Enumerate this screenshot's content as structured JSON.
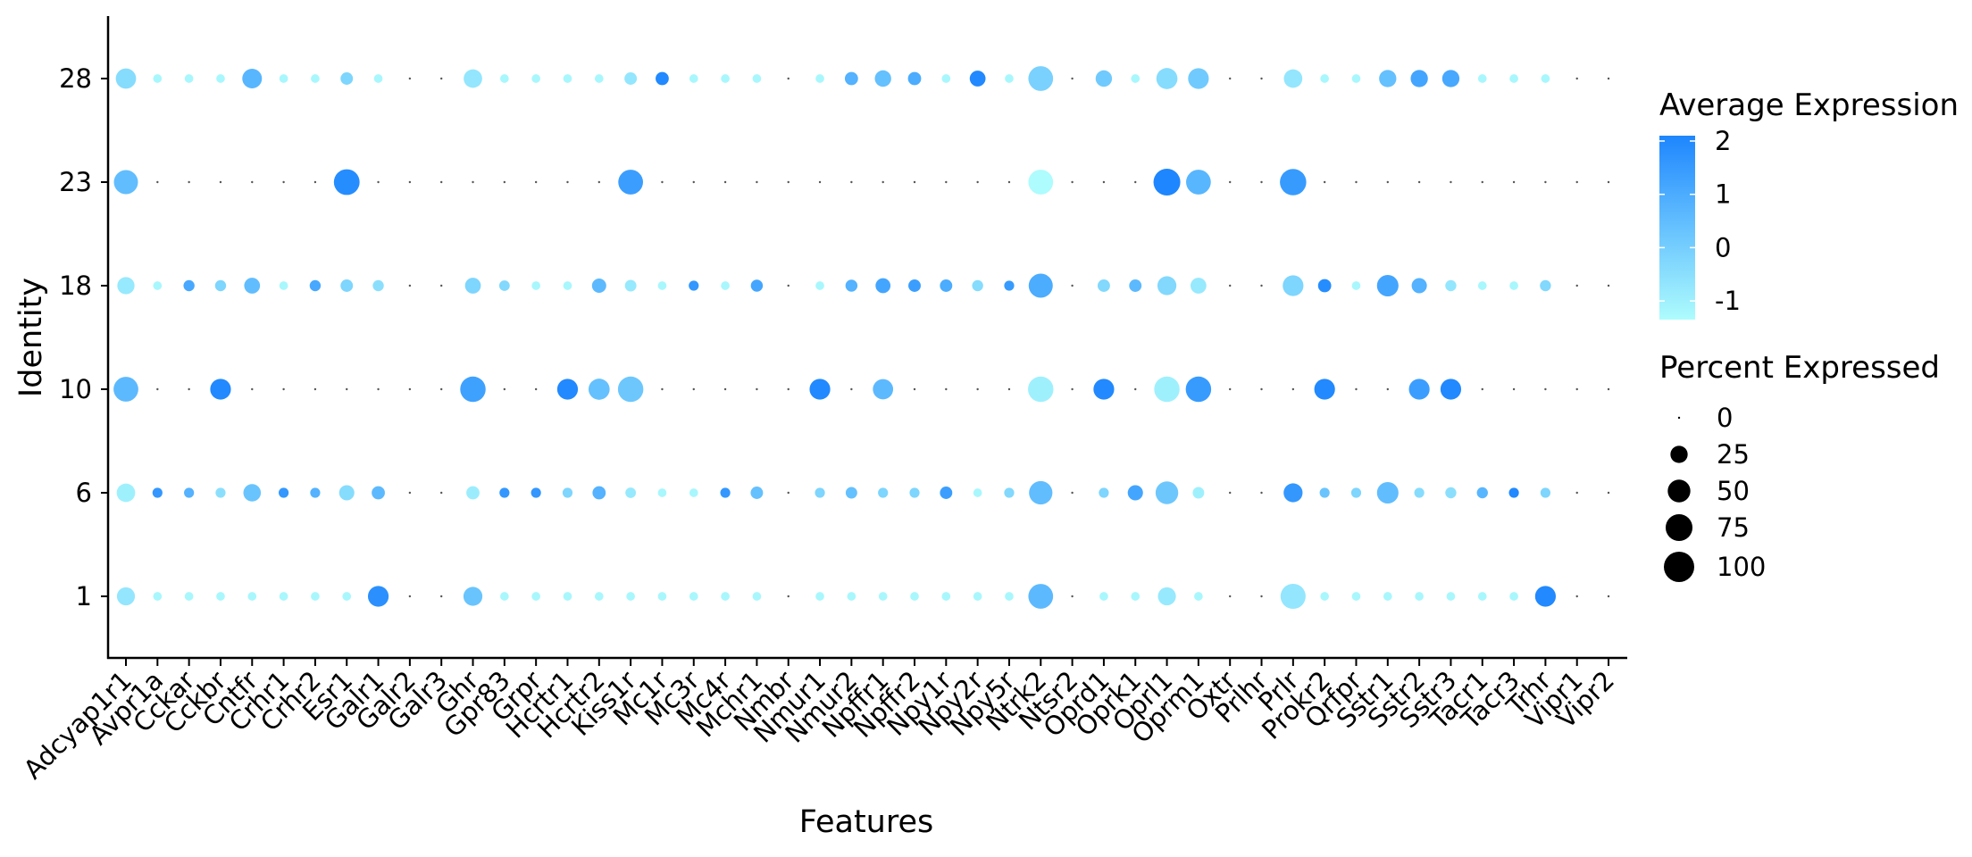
{
  "chart_data": {
    "type": "dotplot",
    "xlabel": "Features",
    "ylabel": "Identity",
    "features": [
      "Adcyap1r1",
      "Avpr1a",
      "Cckar",
      "Cckbr",
      "Cntfr",
      "Crhr1",
      "Crhr2",
      "Esr1",
      "Galr1",
      "Galr2",
      "Galr3",
      "Ghr",
      "Gpr83",
      "Grpr",
      "Hcrtr1",
      "Hcrtr2",
      "Kiss1r",
      "Mc1r",
      "Mc3r",
      "Mc4r",
      "Mchr1",
      "Nmbr",
      "Nmur1",
      "Nmur2",
      "Npffr1",
      "Npffr2",
      "Npy1r",
      "Npy2r",
      "Npy5r",
      "Ntrk2",
      "Ntsr2",
      "Oprd1",
      "Oprk1",
      "Oprl1",
      "Oprm1",
      "Oxtr",
      "Prlhr",
      "Prlr",
      "Prokr2",
      "Qrfpr",
      "Sstr1",
      "Sstr2",
      "Sstr3",
      "Tacr1",
      "Tacr3",
      "Trhr",
      "Vipr1",
      "Vipr2"
    ],
    "identities": [
      "28",
      "23",
      "18",
      "10",
      "6",
      "1"
    ],
    "color_legend": {
      "title": "Average Expression",
      "ticks": [
        2,
        1,
        0,
        -1
      ],
      "range": [
        -1.35,
        2.1
      ],
      "low_color": "#aefcfd",
      "high_color": "#1e86fe"
    },
    "size_legend": {
      "title": "Percent Expressed",
      "ticks": [
        0,
        25,
        50,
        75,
        100
      ]
    },
    "rows": [
      {
        "identity": "28",
        "pct": [
          38,
          3,
          3,
          3,
          35,
          3,
          3,
          10,
          3,
          2,
          2,
          30,
          3,
          3,
          3,
          3,
          10,
          12,
          3,
          3,
          3,
          2,
          3,
          12,
          22,
          12,
          3,
          20,
          3,
          62,
          2,
          22,
          3,
          42,
          40,
          2,
          2,
          30,
          3,
          3,
          25,
          25,
          25,
          3,
          3,
          3,
          2,
          2
        ],
        "avg": [
          -0.4,
          -1.2,
          -1.2,
          -1.2,
          0.7,
          -1.2,
          -1.2,
          -0.2,
          -1.2,
          0,
          0,
          -0.7,
          -1.2,
          -1.2,
          -1.2,
          -1.2,
          -0.7,
          2.0,
          -1.2,
          -1.2,
          -1.2,
          0,
          -1.2,
          0.8,
          0.4,
          1.0,
          -1.2,
          2.0,
          -1.2,
          -0.1,
          0,
          0.1,
          -1.2,
          -0.4,
          0.1,
          0,
          0,
          -0.7,
          -1.2,
          -1.2,
          0.4,
          1.2,
          1.1,
          -1.2,
          -1.2,
          -1.2,
          0,
          0
        ]
      },
      {
        "identity": "23",
        "pct": [
          58,
          2,
          2,
          2,
          2,
          2,
          2,
          68,
          2,
          2,
          2,
          2,
          2,
          2,
          2,
          2,
          62,
          2,
          2,
          2,
          2,
          2,
          2,
          2,
          2,
          2,
          2,
          2,
          2,
          62,
          2,
          2,
          2,
          75,
          62,
          2,
          2,
          72,
          2,
          2,
          2,
          2,
          2,
          2,
          2,
          2,
          2,
          2
        ],
        "avg": [
          0.5,
          -1.2,
          -1.2,
          -1.2,
          -1.2,
          -1.2,
          -1.2,
          1.9,
          -1.2,
          0,
          0,
          -1.2,
          -1.2,
          -1.2,
          -1.2,
          -1.2,
          1.4,
          -1.2,
          -1.2,
          -1.2,
          -1.2,
          0,
          -1.2,
          -1.2,
          -1.2,
          -1.2,
          -1.2,
          -1.2,
          -1.2,
          -1.35,
          0,
          -1.2,
          -1.2,
          2.1,
          0.7,
          0,
          0,
          1.5,
          -1.2,
          -1.2,
          -1.2,
          -1.2,
          -1.2,
          -1.2,
          -1.2,
          -1.2,
          0,
          0
        ]
      },
      {
        "identity": "18",
        "pct": [
          25,
          3,
          7,
          7,
          20,
          3,
          7,
          10,
          7,
          2,
          2,
          20,
          6,
          3,
          3,
          15,
          8,
          3,
          5,
          3,
          9,
          2,
          3,
          9,
          17,
          10,
          10,
          7,
          5,
          58,
          2,
          10,
          10,
          32,
          20,
          2,
          2,
          40,
          12,
          3,
          44,
          18,
          7,
          3,
          3,
          7,
          2,
          2
        ],
        "avg": [
          -0.8,
          -1.2,
          1.1,
          -0.2,
          0.5,
          -1.2,
          1.1,
          -0.2,
          -0.5,
          0,
          0,
          -0.2,
          -0.3,
          -1.2,
          -1.2,
          0.6,
          -0.8,
          -1.2,
          1.6,
          -1.2,
          1.2,
          0,
          -1.2,
          0.8,
          1.2,
          1.4,
          1.0,
          -0.4,
          1.5,
          1.0,
          0,
          -0.3,
          0.6,
          -0.3,
          -0.8,
          0,
          0,
          -0.2,
          1.9,
          -1.2,
          1.2,
          0.8,
          -0.7,
          -1.2,
          -1.2,
          -0.3,
          0,
          0
        ]
      },
      {
        "identity": "10",
        "pct": [
          62,
          2,
          2,
          40,
          2,
          2,
          2,
          2,
          2,
          2,
          2,
          66,
          2,
          2,
          40,
          42,
          66,
          2,
          2,
          2,
          2,
          2,
          40,
          2,
          38,
          2,
          2,
          2,
          2,
          66,
          2,
          40,
          2,
          66,
          66,
          2,
          2,
          2,
          40,
          2,
          2,
          40,
          40,
          2,
          2,
          2,
          2,
          2
        ],
        "avg": [
          0.6,
          -1.2,
          -1.2,
          2.0,
          -1.2,
          -1.2,
          -1.2,
          -1.2,
          -1.2,
          0,
          0,
          1.3,
          -1.2,
          -1.2,
          2.0,
          0.4,
          0.2,
          -1.2,
          -1.2,
          -1.2,
          -1.2,
          0,
          2.0,
          -1.2,
          0.6,
          -1.2,
          -1.2,
          -1.2,
          -1.2,
          -1.0,
          0,
          2.0,
          -1.2,
          -1.0,
          1.5,
          0,
          0,
          -1.2,
          2.0,
          -1.2,
          -1.2,
          1.4,
          2.0,
          -1.2,
          -1.2,
          -1.2,
          0,
          0
        ]
      },
      {
        "identity": "6",
        "pct": [
          30,
          5,
          5,
          5,
          26,
          5,
          5,
          18,
          12,
          2,
          2,
          12,
          5,
          5,
          5,
          12,
          6,
          3,
          3,
          5,
          10,
          2,
          5,
          8,
          5,
          5,
          10,
          3,
          5,
          54,
          2,
          5,
          18,
          50,
          8,
          2,
          2,
          32,
          5,
          5,
          44,
          5,
          7,
          7,
          5,
          5,
          2,
          2
        ],
        "avg": [
          -1.0,
          1.6,
          0.8,
          -0.5,
          0.3,
          1.6,
          0.8,
          -0.4,
          0.6,
          0,
          0,
          -0.9,
          1.6,
          1.6,
          -0.2,
          0.8,
          -0.8,
          -1.2,
          -1.2,
          1.6,
          0.4,
          0,
          -0.2,
          0.4,
          -0.2,
          -0.2,
          1.4,
          -1.2,
          -0.3,
          0.5,
          0,
          -0.2,
          1.2,
          0.2,
          -1.0,
          0,
          0,
          1.6,
          0.3,
          -0.2,
          0.5,
          -0.4,
          -0.5,
          0.7,
          2.0,
          -0.2,
          0,
          0
        ]
      },
      {
        "identity": "1",
        "pct": [
          28,
          3,
          3,
          3,
          3,
          3,
          3,
          3,
          40,
          2,
          2,
          32,
          3,
          3,
          3,
          3,
          3,
          3,
          3,
          3,
          3,
          2,
          3,
          3,
          3,
          3,
          3,
          3,
          3,
          62,
          2,
          3,
          3,
          28,
          3,
          2,
          2,
          64,
          3,
          3,
          3,
          3,
          3,
          3,
          3,
          40,
          2,
          2
        ],
        "avg": [
          -0.7,
          -1.2,
          -1.2,
          -1.2,
          -1.2,
          -1.2,
          -1.2,
          -1.2,
          1.8,
          0,
          0,
          0.3,
          -1.2,
          -1.2,
          -1.2,
          -1.2,
          -1.2,
          -1.2,
          -1.2,
          -1.2,
          -1.2,
          0,
          -1.2,
          -1.2,
          -1.2,
          -1.2,
          -1.2,
          -1.2,
          -1.2,
          0.6,
          0,
          -1.2,
          -1.2,
          -0.8,
          -1.2,
          0,
          0,
          -0.7,
          -1.2,
          -1.2,
          -1.2,
          -1.2,
          -1.2,
          -1.2,
          -1.2,
          2.0,
          0,
          0
        ]
      }
    ]
  }
}
